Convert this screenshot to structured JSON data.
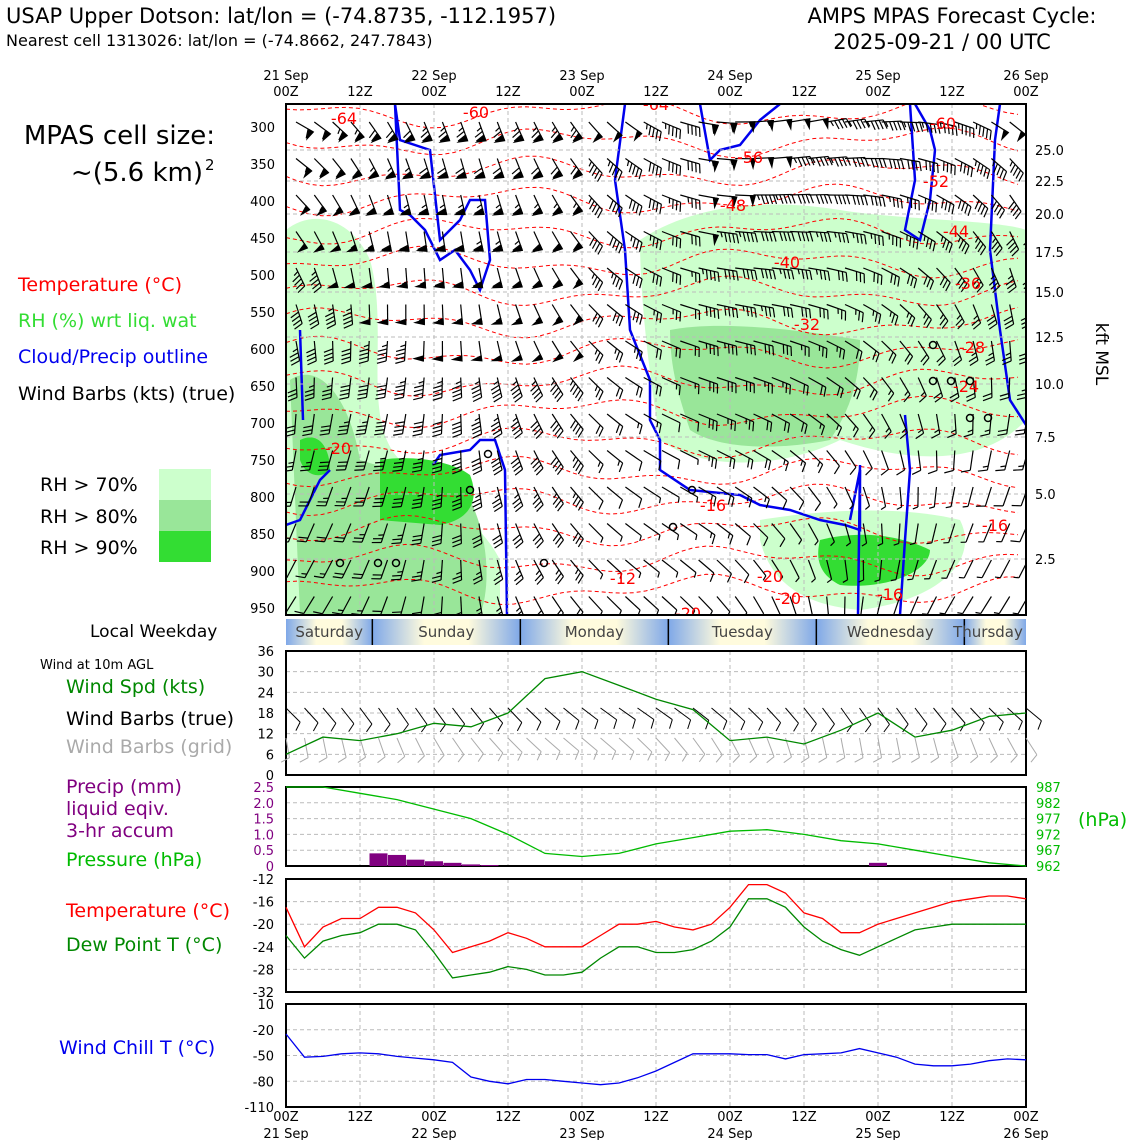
{
  "header": {
    "station_line": "USAP Upper Dotson: lat/lon = (-74.8735, -112.1957)",
    "cell_line": "Nearest cell 1313026: lat/lon = (-74.8662, 247.7843)",
    "forecast_title": "AMPS MPAS Forecast Cycle:",
    "forecast_cycle": "2025-09-21 / 00 UTC"
  },
  "colors": {
    "temperature": "#ff0000",
    "rh": "#33dd33",
    "cloud": "#0000ee",
    "wind": "#000000",
    "grid_wind": "#aaaaaa",
    "precip": "#800080",
    "pressure": "#00bb00",
    "dewpoint": "#008800",
    "windchill": "#0000ee",
    "rh70": "#ccffcc",
    "rh80": "#99e699",
    "rh90": "#33dd33",
    "band_blue": "#7fa8e8",
    "band_cream": "#fffbdd"
  },
  "time_axis": {
    "top_ticks": [
      {
        "line1": "21 Sep",
        "line2": "00Z"
      },
      {
        "line1": "",
        "line2": "12Z"
      },
      {
        "line1": "22 Sep",
        "line2": "00Z"
      },
      {
        "line1": "",
        "line2": "12Z"
      },
      {
        "line1": "23 Sep",
        "line2": "00Z"
      },
      {
        "line1": "",
        "line2": "12Z"
      },
      {
        "line1": "24 Sep",
        "line2": "00Z"
      },
      {
        "line1": "",
        "line2": "12Z"
      },
      {
        "line1": "25 Sep",
        "line2": "00Z"
      },
      {
        "line1": "",
        "line2": "12Z"
      },
      {
        "line1": "26 Sep",
        "line2": "00Z"
      }
    ],
    "bottom_ticks": [
      {
        "line1": "00Z",
        "line2": "21 Sep"
      },
      {
        "line1": "12Z",
        "line2": ""
      },
      {
        "line1": "00Z",
        "line2": "22 Sep"
      },
      {
        "line1": "12Z",
        "line2": ""
      },
      {
        "line1": "00Z",
        "line2": "23 Sep"
      },
      {
        "line1": "12Z",
        "line2": ""
      },
      {
        "line1": "00Z",
        "line2": "24 Sep"
      },
      {
        "line1": "12Z",
        "line2": ""
      },
      {
        "line1": "00Z",
        "line2": "25 Sep"
      },
      {
        "line1": "12Z",
        "line2": ""
      },
      {
        "line1": "00Z",
        "line2": "26 Sep"
      }
    ]
  },
  "cross_section": {
    "cell_size_label": "MPAS cell size:",
    "cell_size_value": "~(5.6 km)",
    "cell_size_sup": "2",
    "legend": {
      "temperature": "Temperature (°C)",
      "rh": "RH (%) wrt liq. wat",
      "cloud": "Cloud/Precip outline",
      "wind": "Wind Barbs (kts) (true)"
    },
    "rh_legend": [
      "RH > 70%",
      "RH > 80%",
      "RH > 90%"
    ],
    "right_axis_title": "kft MSL",
    "pressure_ticks": [
      "300",
      "350",
      "400",
      "450",
      "500",
      "550",
      "600",
      "650",
      "700",
      "750",
      "800",
      "850",
      "900",
      "950"
    ],
    "altitude_ticks": [
      "25.0",
      "22.5",
      "20.0",
      "17.5",
      "15.0",
      "12.5",
      "10.0",
      "7.5",
      "5.0",
      "2.5"
    ],
    "contour_labels": [
      "-64",
      "-60",
      "-64",
      "-56",
      "-60",
      "-52",
      "-48",
      "-44",
      "-40",
      "-36",
      "-32",
      "-28",
      "-24",
      "-20",
      "-16",
      "-16",
      "-12",
      "-20",
      "-20",
      "-16",
      "-20"
    ]
  },
  "weekday_band": {
    "label": "Local Weekday",
    "days": [
      "Saturday",
      "Sunday",
      "Monday",
      "Tuesday",
      "Wednesday",
      "Thursday"
    ]
  },
  "panels": {
    "wind_title": "Wind at 10m AGL",
    "wind_speed_label": "Wind Spd (kts)",
    "wind_barbs_true_label": "Wind Barbs (true)",
    "wind_barbs_grid_label": "Wind Barbs (grid)",
    "precip_label_1": "Precip (mm)",
    "precip_label_2": "liquid eqiv.",
    "precip_label_3": "3-hr accum",
    "pressure_label": "Pressure (hPa)",
    "pressure_unit": "(hPa)",
    "temperature_label": "Temperature (°C)",
    "dewpoint_label": "Dew Point T (°C)",
    "windchill_label": "Wind Chill T (°C)"
  },
  "chart_data": [
    {
      "type": "line",
      "title": "Wind at 10m AGL",
      "ylabel": "Wind Spd (kts)",
      "ylim": [
        0,
        36
      ],
      "yticks": [
        "0",
        "6",
        "12",
        "18",
        "24",
        "30",
        "36"
      ],
      "x_hours": [
        0,
        6,
        12,
        18,
        24,
        30,
        36,
        42,
        48,
        54,
        60,
        66,
        72,
        78,
        84,
        90,
        96,
        102,
        108,
        114,
        120
      ],
      "series": [
        {
          "name": "Wind Spd (kts)",
          "values": [
            6,
            11,
            10,
            12,
            15,
            14,
            18,
            28,
            30,
            26,
            22,
            19,
            10,
            11,
            9,
            13,
            18,
            11,
            13,
            17,
            18
          ]
        }
      ]
    },
    {
      "type": "bar+line",
      "title": "Precip and Pressure",
      "ylabel": "Precip (mm) liquid eqiv. 3-hr accum",
      "ylim": [
        0,
        2.5
      ],
      "yticks": [
        "0",
        "0.5",
        "1.0",
        "1.5",
        "2.0",
        "2.5"
      ],
      "y2label": "Pressure (hPa)",
      "y2lim": [
        962,
        987
      ],
      "y2ticks": [
        "962",
        "967",
        "972",
        "977",
        "982",
        "987"
      ],
      "precip_hours": [
        15,
        18,
        21,
        24,
        27,
        30,
        33,
        36,
        39,
        42,
        45,
        48,
        51,
        54,
        57,
        60,
        63,
        66,
        69,
        72,
        75,
        78,
        81,
        84,
        87,
        90,
        93,
        96,
        99,
        102,
        105,
        108,
        111,
        114,
        117,
        120
      ],
      "precip": [
        0.4,
        0.35,
        0.2,
        0.15,
        0.1,
        0.05,
        0.03,
        0,
        0,
        0,
        0,
        0,
        0,
        0,
        0,
        0,
        0,
        0,
        0,
        0,
        0,
        0,
        0,
        0,
        0,
        0,
        0,
        0.1,
        0,
        0,
        0,
        0,
        0,
        0,
        0,
        0
      ],
      "pressure_hours": [
        0,
        6,
        12,
        18,
        24,
        30,
        36,
        42,
        48,
        54,
        60,
        66,
        72,
        78,
        84,
        90,
        96,
        102,
        108,
        114,
        120
      ],
      "pressure": [
        987,
        987,
        985,
        983,
        980,
        977,
        972,
        966,
        965,
        966,
        969,
        971,
        973,
        973.5,
        972,
        970,
        969,
        967,
        965,
        963,
        962
      ]
    },
    {
      "type": "line",
      "title": "Temperature and Dew Point",
      "ylim": [
        -32,
        -12
      ],
      "yticks": [
        "-32",
        "-28",
        "-24",
        "-20",
        "-16",
        "-12"
      ],
      "x_hours": [
        0,
        3,
        6,
        9,
        12,
        15,
        18,
        21,
        24,
        27,
        30,
        33,
        36,
        39,
        42,
        45,
        48,
        51,
        54,
        57,
        60,
        63,
        66,
        69,
        72,
        75,
        78,
        81,
        84,
        87,
        90,
        93,
        96,
        99,
        102,
        105,
        108,
        111,
        114,
        117,
        120
      ],
      "series": [
        {
          "name": "Temperature (°C)",
          "values": [
            -17,
            -24,
            -20.5,
            -19,
            -19,
            -17,
            -17,
            -18,
            -21,
            -25,
            -24,
            -23,
            -21.5,
            -22.5,
            -24,
            -24,
            -24,
            -22,
            -20,
            -20,
            -19.5,
            -20.5,
            -21,
            -20,
            -17,
            -13,
            -13,
            -14.5,
            -18,
            -19,
            -21.5,
            -21.5,
            -20,
            -19,
            -18,
            -17,
            -16,
            -15.5,
            -15,
            -15,
            -15.5
          ]
        },
        {
          "name": "Dew Point T (°C)",
          "values": [
            -22,
            -26,
            -23,
            -22,
            -21.5,
            -20,
            -20,
            -21,
            -25,
            -29.5,
            -29,
            -28.5,
            -27.5,
            -28,
            -29,
            -29,
            -28.5,
            -26,
            -24,
            -24,
            -25,
            -25,
            -24.5,
            -23,
            -20.5,
            -15.5,
            -15.5,
            -17,
            -20.5,
            -23,
            -24.5,
            -25.5,
            -24,
            -22.5,
            -21,
            -20.5,
            -20,
            -20,
            -20,
            -20,
            -20
          ]
        }
      ]
    },
    {
      "type": "line",
      "title": "Wind Chill",
      "ylim": [
        -110,
        10
      ],
      "yticks": [
        "-110",
        "-80",
        "-50",
        "-20",
        "10"
      ],
      "x_hours": [
        0,
        3,
        6,
        9,
        12,
        15,
        18,
        21,
        24,
        27,
        30,
        33,
        36,
        39,
        42,
        45,
        48,
        51,
        54,
        57,
        60,
        63,
        66,
        69,
        72,
        75,
        78,
        81,
        84,
        87,
        90,
        93,
        96,
        99,
        102,
        105,
        108,
        111,
        114,
        117,
        120
      ],
      "series": [
        {
          "name": "Wind Chill T (°C)",
          "values": [
            -25,
            -52,
            -51,
            -48,
            -47,
            -48,
            -51,
            -53,
            -55,
            -58,
            -75,
            -80,
            -83,
            -78,
            -78,
            -80,
            -82,
            -84,
            -82,
            -76,
            -68,
            -58,
            -48,
            -48,
            -48,
            -49,
            -49,
            -54,
            -49,
            -48,
            -47,
            -42,
            -47,
            -52,
            -60,
            -62,
            -62,
            -60,
            -56,
            -54,
            -55
          ]
        }
      ]
    }
  ]
}
